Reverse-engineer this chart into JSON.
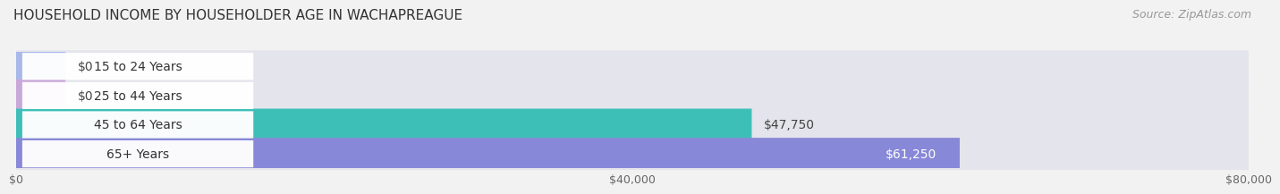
{
  "title": "HOUSEHOLD INCOME BY HOUSEHOLDER AGE IN WACHAPREAGUE",
  "source": "Source: ZipAtlas.com",
  "categories": [
    "15 to 24 Years",
    "25 to 44 Years",
    "45 to 64 Years",
    "65+ Years"
  ],
  "values": [
    0,
    0,
    47750,
    61250
  ],
  "bar_colors": [
    "#a8b8e8",
    "#c8a8d8",
    "#3dbfb8",
    "#8888d8"
  ],
  "value_labels": [
    "$0",
    "$0",
    "$47,750",
    "$61,250"
  ],
  "value_label_colors": [
    "#444444",
    "#444444",
    "#444444",
    "#ffffff"
  ],
  "xlim": [
    0,
    80000
  ],
  "xtick_labels": [
    "$0",
    "$40,000",
    "$80,000"
  ],
  "xtick_vals": [
    0,
    40000,
    80000
  ],
  "background_color": "#f2f2f2",
  "bar_bg_color": "#e4e4ec",
  "title_fontsize": 11,
  "source_fontsize": 9,
  "label_fontsize": 10,
  "value_fontsize": 10
}
